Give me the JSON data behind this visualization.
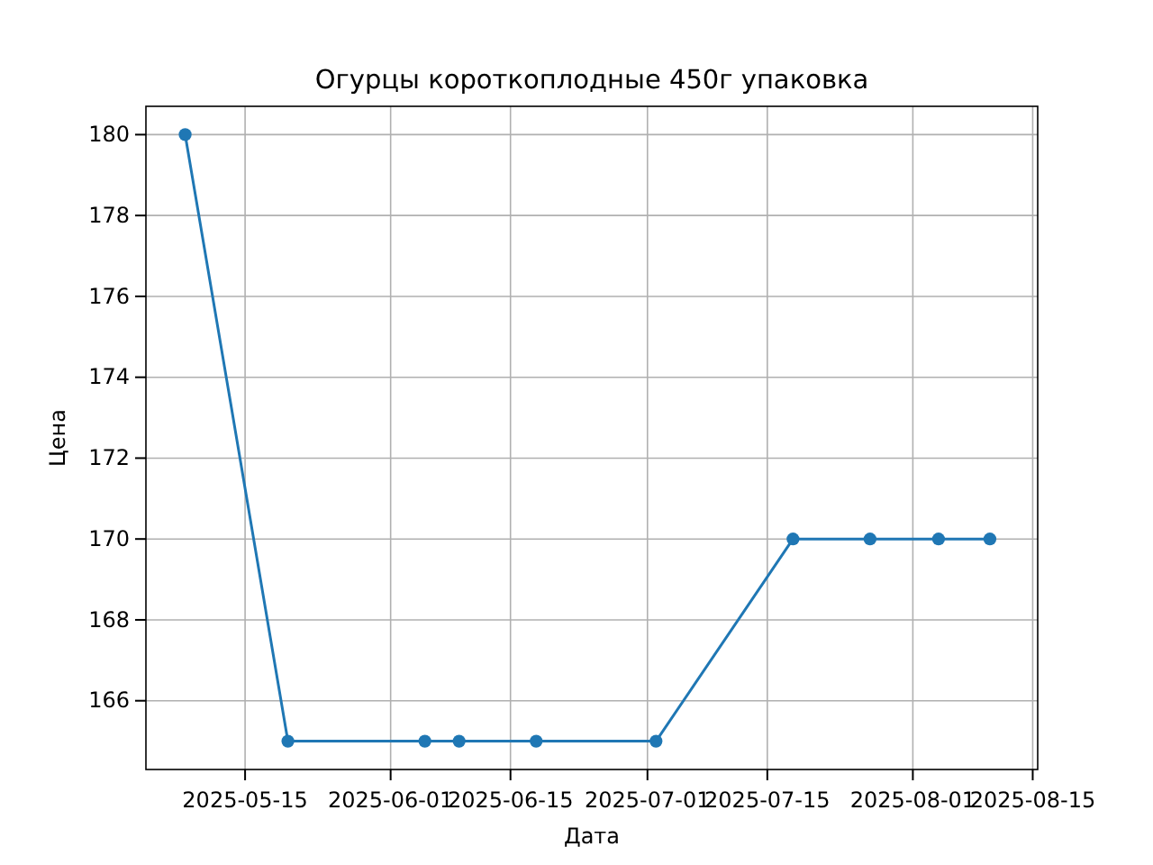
{
  "chart_data": {
    "type": "line",
    "title": "Огурцы короткоплодные 450г упаковка",
    "xlabel": "Дата",
    "ylabel": "Цена",
    "x": [
      "2025-05-08",
      "2025-05-20",
      "2025-06-05",
      "2025-06-09",
      "2025-06-18",
      "2025-07-02",
      "2025-07-18",
      "2025-07-27",
      "2025-08-04",
      "2025-08-10"
    ],
    "series": [
      {
        "color": "#1f77b4",
        "values": [
          180,
          165,
          165,
          165,
          165,
          165,
          170,
          170,
          170,
          170
        ]
      }
    ],
    "xlim": [
      "2025-05-03T10:00",
      "2025-08-15T14:00"
    ],
    "xticks": [
      "2025-05-15",
      "2025-06-01",
      "2025-06-15",
      "2025-07-01",
      "2025-07-15",
      "2025-08-01",
      "2025-08-15"
    ],
    "ylim": [
      164.3,
      180.7
    ],
    "yticks": [
      166,
      168,
      170,
      172,
      174,
      176,
      178,
      180
    ],
    "grid": true,
    "marker": "circle",
    "line_style": "solid"
  }
}
